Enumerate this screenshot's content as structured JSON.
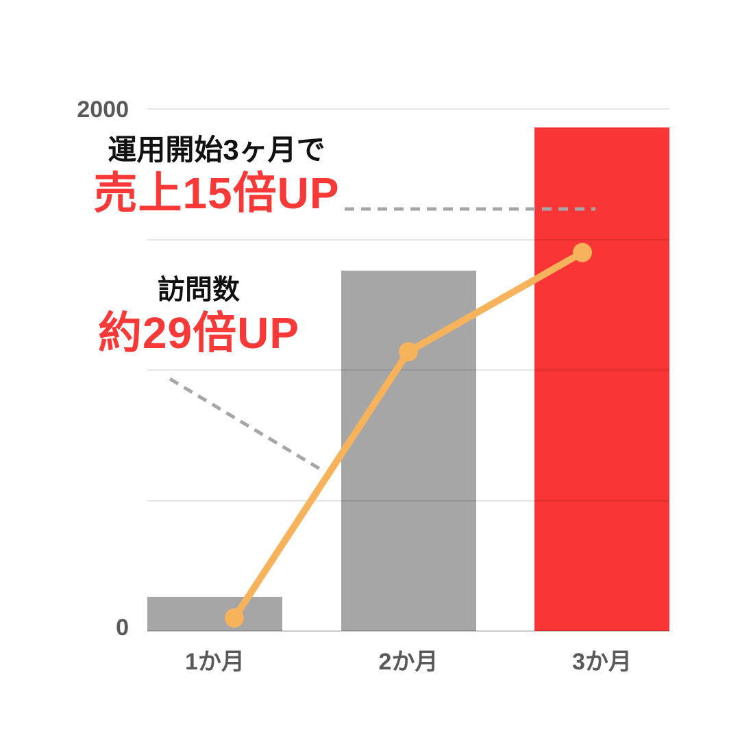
{
  "annotations": {
    "heading_line1": "運用開始3ヶ月で",
    "heading_line2": "売上15倍UP",
    "visits_line1": "訪問数",
    "visits_line2": "約29倍UP"
  },
  "colors": {
    "background": "#ffffff",
    "bar_gray": "#a6a6a6",
    "bar_red": "#f93535",
    "line_orange": "#f6b35b",
    "accent_red_text": "#f93838",
    "axis_text": "#595959",
    "heading_text": "#111111",
    "connector_gray": "#a6a6a6"
  },
  "chart_data": {
    "type": "combo",
    "categories": [
      "1か月",
      "2か月",
      "3か月"
    ],
    "series": [
      {
        "name": "売上",
        "type": "bar",
        "values": [
          130,
          1380,
          1930
        ]
      },
      {
        "name": "訪問数",
        "type": "line",
        "values": [
          50,
          1070,
          1450
        ]
      }
    ],
    "ylim": [
      0,
      2000
    ],
    "yticks": [
      "2000",
      "0"
    ],
    "gridline_values": [
      0,
      500,
      1000,
      1500,
      2000
    ],
    "grid": "horizontal",
    "legend_position": "none",
    "bar_colors": [
      "#a6a6a6",
      "#a6a6a6",
      "#f93535"
    ],
    "line_color": "#f6b35b"
  }
}
